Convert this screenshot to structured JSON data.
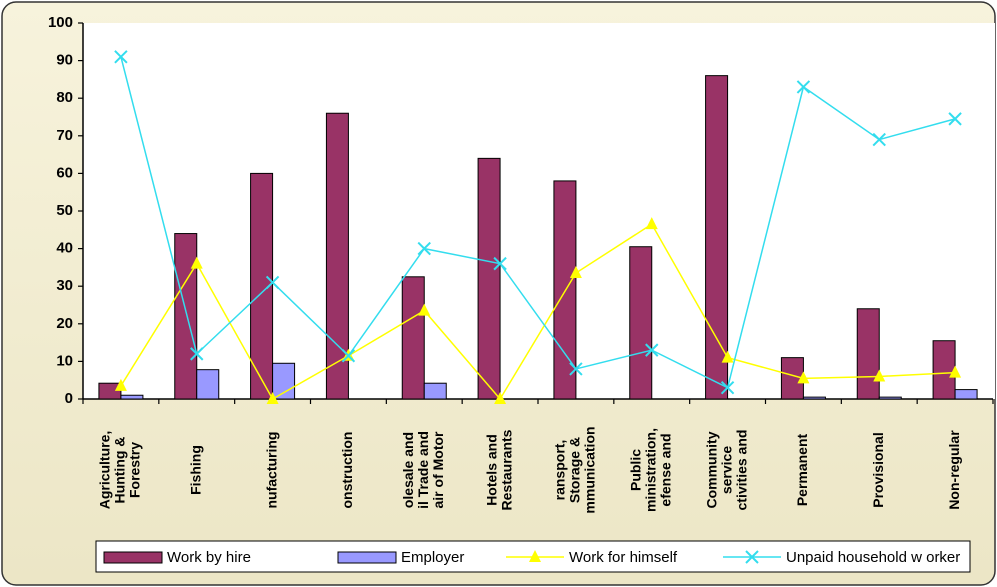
{
  "chart_data": {
    "type": "bar_line",
    "categories": [
      [
        "Agriculture,",
        "Hunting &",
        "Forestry"
      ],
      [
        "Fishing"
      ],
      [
        "nufacturing"
      ],
      [
        "onstruction"
      ],
      [
        "olesale and",
        "il Trade and",
        "air of Motor"
      ],
      [
        "Hotels and",
        "Restaurants"
      ],
      [
        "ransport,",
        "Storage &",
        "mmunication"
      ],
      [
        "Public",
        "ministration,",
        "efense and"
      ],
      [
        "Community",
        "service",
        "ctivities and"
      ],
      [
        "Permanent"
      ],
      [
        "Provisional"
      ],
      [
        "Non-regular"
      ]
    ],
    "series": [
      {
        "name": "Work by hire",
        "type": "bar",
        "color": "#993366",
        "values": [
          4.2,
          44,
          60,
          76,
          32.5,
          64,
          58,
          40.5,
          86,
          11,
          24,
          15.5
        ]
      },
      {
        "name": "Employer",
        "type": "bar",
        "color": "#9999ff",
        "values": [
          1,
          7.8,
          9.5,
          0,
          4.2,
          0,
          0,
          0,
          0,
          0.5,
          0.5,
          2.5
        ]
      },
      {
        "name": "Work for himself",
        "type": "line",
        "marker": "triangle",
        "color": "#ffff00",
        "values": [
          3.5,
          36,
          0,
          11.5,
          23.5,
          0,
          33.5,
          46.5,
          11,
          5.5,
          6,
          7
        ]
      },
      {
        "name": "Unpaid household w orker",
        "type": "line",
        "marker": "x",
        "color": "#33ddee",
        "values": [
          91,
          12,
          31,
          11.5,
          40,
          36,
          8,
          13,
          3,
          83,
          69,
          74.5
        ]
      }
    ],
    "ylim": [
      0,
      100
    ],
    "yticks": [
      0,
      10,
      20,
      30,
      40,
      50,
      60,
      70,
      80,
      90,
      100
    ],
    "grid": false,
    "legend": "bottom"
  }
}
